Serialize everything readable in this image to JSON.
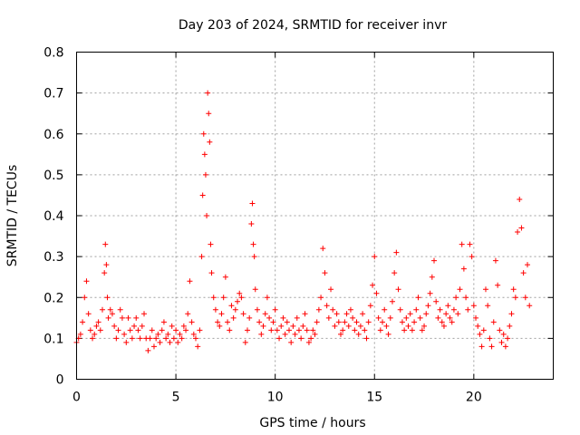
{
  "chart_data": {
    "type": "scatter",
    "title": "Day 203 of 2024, SRMTID for receiver invr",
    "xlabel": "GPS time / hours",
    "ylabel": "SRMTID / TECUs",
    "xlim": [
      0,
      24
    ],
    "ylim": [
      0,
      0.8
    ],
    "xticks": [
      0,
      5,
      10,
      15,
      20
    ],
    "xtick_labels": [
      "0",
      "5",
      "10",
      "15",
      "20"
    ],
    "yticks": [
      0,
      0.1,
      0.2,
      0.3,
      0.4,
      0.5,
      0.6,
      0.7,
      0.8
    ],
    "ytick_labels": [
      "0",
      "0.1",
      "0.2",
      "0.3",
      "0.4",
      "0.5",
      "0.6",
      "0.7",
      "0.8"
    ],
    "grid": true,
    "marker": "+",
    "color": "#ff0000",
    "series": [
      {
        "name": "SRMTID",
        "x": [
          0.0,
          0.1,
          0.2,
          0.3,
          0.4,
          0.5,
          0.6,
          0.7,
          0.8,
          0.9,
          1.0,
          1.1,
          1.2,
          1.3,
          1.4,
          1.45,
          1.5,
          1.55,
          1.6,
          1.7,
          1.8,
          1.9,
          2.0,
          2.1,
          2.2,
          2.3,
          2.4,
          2.5,
          2.6,
          2.7,
          2.8,
          2.9,
          3.0,
          3.1,
          3.2,
          3.3,
          3.4,
          3.5,
          3.6,
          3.7,
          3.8,
          3.9,
          4.0,
          4.1,
          4.2,
          4.3,
          4.4,
          4.5,
          4.6,
          4.7,
          4.8,
          4.9,
          5.0,
          5.1,
          5.2,
          5.3,
          5.4,
          5.5,
          5.6,
          5.7,
          5.8,
          5.9,
          6.0,
          6.1,
          6.2,
          6.3,
          6.35,
          6.4,
          6.45,
          6.5,
          6.55,
          6.6,
          6.65,
          6.7,
          6.75,
          6.8,
          6.9,
          7.0,
          7.1,
          7.2,
          7.3,
          7.4,
          7.5,
          7.6,
          7.7,
          7.8,
          7.9,
          8.0,
          8.1,
          8.2,
          8.3,
          8.4,
          8.5,
          8.6,
          8.7,
          8.8,
          8.85,
          8.9,
          8.95,
          9.0,
          9.1,
          9.2,
          9.3,
          9.4,
          9.5,
          9.6,
          9.7,
          9.8,
          9.9,
          10.0,
          10.1,
          10.2,
          10.3,
          10.4,
          10.5,
          10.6,
          10.7,
          10.8,
          10.9,
          11.0,
          11.1,
          11.2,
          11.3,
          11.4,
          11.5,
          11.6,
          11.7,
          11.8,
          11.9,
          12.0,
          12.1,
          12.2,
          12.3,
          12.4,
          12.5,
          12.6,
          12.7,
          12.8,
          12.9,
          13.0,
          13.1,
          13.2,
          13.3,
          13.4,
          13.5,
          13.6,
          13.7,
          13.8,
          13.9,
          14.0,
          14.1,
          14.2,
          14.3,
          14.4,
          14.5,
          14.6,
          14.7,
          14.8,
          14.9,
          15.0,
          15.1,
          15.2,
          15.3,
          15.4,
          15.5,
          15.6,
          15.7,
          15.8,
          15.9,
          16.0,
          16.1,
          16.2,
          16.3,
          16.4,
          16.5,
          16.6,
          16.7,
          16.8,
          16.9,
          17.0,
          17.1,
          17.2,
          17.3,
          17.4,
          17.5,
          17.6,
          17.7,
          17.8,
          17.9,
          18.0,
          18.1,
          18.2,
          18.3,
          18.4,
          18.5,
          18.6,
          18.7,
          18.8,
          18.9,
          19.0,
          19.1,
          19.2,
          19.3,
          19.4,
          19.5,
          19.6,
          19.7,
          19.8,
          19.9,
          20.0,
          20.1,
          20.2,
          20.3,
          20.4,
          20.5,
          20.6,
          20.7,
          20.8,
          20.9,
          21.0,
          21.1,
          21.2,
          21.3,
          21.4,
          21.5,
          21.6,
          21.7,
          21.8,
          21.9,
          22.0,
          22.1,
          22.2,
          22.3,
          22.4,
          22.5,
          22.6,
          22.7,
          22.8
        ],
        "y": [
          0.09,
          0.1,
          0.11,
          0.14,
          0.2,
          0.24,
          0.16,
          0.12,
          0.1,
          0.11,
          0.13,
          0.14,
          0.12,
          0.17,
          0.26,
          0.33,
          0.28,
          0.2,
          0.15,
          0.17,
          0.16,
          0.13,
          0.1,
          0.12,
          0.17,
          0.15,
          0.11,
          0.09,
          0.15,
          0.12,
          0.1,
          0.13,
          0.15,
          0.12,
          0.1,
          0.13,
          0.16,
          0.1,
          0.07,
          0.1,
          0.12,
          0.08,
          0.1,
          0.11,
          0.09,
          0.12,
          0.14,
          0.1,
          0.11,
          0.09,
          0.13,
          0.1,
          0.12,
          0.09,
          0.11,
          0.1,
          0.13,
          0.12,
          0.16,
          0.24,
          0.14,
          0.11,
          0.1,
          0.08,
          0.12,
          0.3,
          0.45,
          0.6,
          0.55,
          0.5,
          0.4,
          0.7,
          0.65,
          0.58,
          0.33,
          0.26,
          0.2,
          0.17,
          0.14,
          0.13,
          0.16,
          0.2,
          0.25,
          0.14,
          0.12,
          0.18,
          0.15,
          0.17,
          0.19,
          0.21,
          0.2,
          0.16,
          0.09,
          0.12,
          0.15,
          0.38,
          0.43,
          0.33,
          0.3,
          0.22,
          0.17,
          0.14,
          0.11,
          0.13,
          0.16,
          0.2,
          0.15,
          0.12,
          0.14,
          0.17,
          0.12,
          0.1,
          0.13,
          0.15,
          0.11,
          0.14,
          0.12,
          0.09,
          0.13,
          0.11,
          0.15,
          0.12,
          0.1,
          0.13,
          0.16,
          0.12,
          0.09,
          0.1,
          0.12,
          0.11,
          0.14,
          0.17,
          0.2,
          0.32,
          0.26,
          0.18,
          0.15,
          0.22,
          0.17,
          0.13,
          0.16,
          0.14,
          0.11,
          0.12,
          0.14,
          0.16,
          0.13,
          0.17,
          0.15,
          0.12,
          0.14,
          0.11,
          0.13,
          0.16,
          0.12,
          0.1,
          0.14,
          0.18,
          0.23,
          0.3,
          0.21,
          0.15,
          0.12,
          0.14,
          0.17,
          0.13,
          0.11,
          0.15,
          0.19,
          0.26,
          0.31,
          0.22,
          0.17,
          0.14,
          0.12,
          0.15,
          0.13,
          0.16,
          0.12,
          0.14,
          0.17,
          0.2,
          0.15,
          0.12,
          0.13,
          0.16,
          0.18,
          0.21,
          0.25,
          0.29,
          0.19,
          0.15,
          0.17,
          0.14,
          0.13,
          0.16,
          0.18,
          0.15,
          0.14,
          0.17,
          0.2,
          0.16,
          0.22,
          0.33,
          0.27,
          0.2,
          0.17,
          0.33,
          0.3,
          0.18,
          0.15,
          0.13,
          0.11,
          0.08,
          0.12,
          0.22,
          0.18,
          0.1,
          0.08,
          0.14,
          0.29,
          0.23,
          0.12,
          0.09,
          0.11,
          0.08,
          0.1,
          0.13,
          0.16,
          0.22,
          0.2,
          0.36,
          0.44,
          0.37,
          0.26,
          0.2,
          0.28,
          0.18
        ]
      }
    ]
  }
}
